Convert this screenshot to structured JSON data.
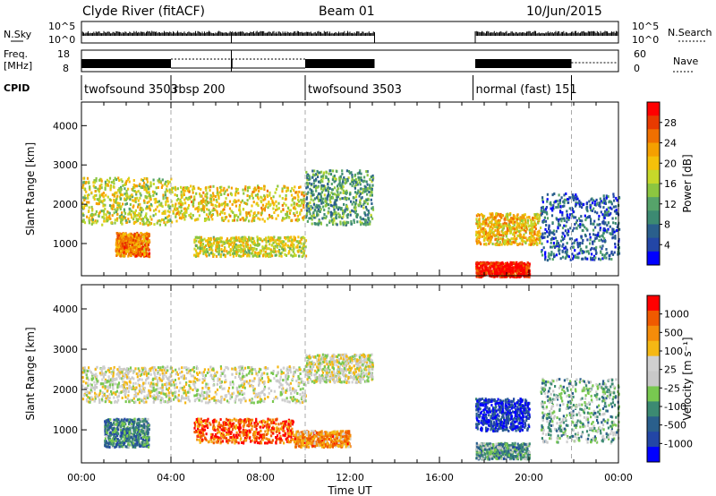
{
  "header": {
    "station": "Clyde River (fitACF)",
    "beam": "Beam 01",
    "date": "10/Jun/2015"
  },
  "top_panels": {
    "nsky_label": "N.Sky",
    "nsky_ticks": [
      "10^5",
      "10^0"
    ],
    "nsearch_label": "N.Search",
    "nsearch_ticks": [
      "10^5",
      "10^0"
    ],
    "freq_label_1": "Freq.",
    "freq_label_2": "[MHz]",
    "freq_ticks": [
      "18",
      "8"
    ],
    "nave_label": "Nave",
    "nave_ticks": [
      "60",
      "0"
    ],
    "cpid_label": "CPID",
    "cpid_segments": [
      {
        "label": "twofsound 3503",
        "start": 0.0,
        "end": 4.0
      },
      {
        "label": "rbsp 200",
        "start": 4.0,
        "end": 10.0
      },
      {
        "label": "twofsound 3503",
        "start": 10.0,
        "end": 17.5
      },
      {
        "label": "normal (fast) 151",
        "start": 17.5,
        "end": 24.0
      }
    ],
    "data_gap": [
      13.1,
      17.6
    ]
  },
  "chart_data": [
    {
      "type": "heatmap",
      "name": "power",
      "ylabel": "Slant Range [km]",
      "yticks": [
        "1000",
        "2000",
        "3000",
        "4000"
      ],
      "ylim": [
        180,
        4600
      ],
      "xlim": [
        0,
        24
      ],
      "colorbar_label": "Power [dB]",
      "colorbar_ticks": [
        "4",
        "8",
        "12",
        "16",
        "20",
        "24",
        "28"
      ],
      "colorscale": [
        "#0000ff",
        "#2346a6",
        "#2a5f8c",
        "#3c8a72",
        "#56a36a",
        "#8cc640",
        "#c6d82a",
        "#f5c10a",
        "#f5a000",
        "#f07000",
        "#e83a00",
        "#ff0000"
      ],
      "regions": [
        {
          "t": [
            0.0,
            4.0
          ],
          "r": [
            1500,
            2700
          ],
          "level": 0.55
        },
        {
          "t": [
            1.5,
            3.0
          ],
          "r": [
            700,
            1300
          ],
          "level": 0.75
        },
        {
          "t": [
            4.0,
            10.0
          ],
          "r": [
            1600,
            2500
          ],
          "level": 0.6
        },
        {
          "t": [
            5.0,
            10.0
          ],
          "r": [
            700,
            1200
          ],
          "level": 0.55
        },
        {
          "t": [
            10.0,
            13.0
          ],
          "r": [
            1500,
            2900
          ],
          "level": 0.35
        },
        {
          "t": [
            17.6,
            20.5
          ],
          "r": [
            1000,
            1800
          ],
          "level": 0.65
        },
        {
          "t": [
            17.6,
            20.0
          ],
          "r": [
            180,
            550
          ],
          "level": 0.95
        },
        {
          "t": [
            20.5,
            24.0
          ],
          "r": [
            600,
            2300
          ],
          "level": 0.2
        }
      ]
    },
    {
      "type": "heatmap",
      "name": "velocity",
      "ylabel": "Slant Range [km]",
      "yticks": [
        "1000",
        "2000",
        "3000",
        "4000"
      ],
      "ylim": [
        180,
        4600
      ],
      "xlim": [
        0,
        24
      ],
      "xticks": [
        "00:00",
        "04:00",
        "08:00",
        "12:00",
        "16:00",
        "20:00",
        "00:00"
      ],
      "xlabel": "Time UT",
      "colorbar_label": "Velocity [m s⁻¹]",
      "colorbar_ticks": [
        "1000",
        "500",
        "100",
        "25",
        "-25",
        "-100",
        "-500",
        "-1000"
      ],
      "colorscale": [
        "#ff0000",
        "#f05a00",
        "#f58c0a",
        "#f5b814",
        "#d0d0d0",
        "#c8c8c8",
        "#78c850",
        "#3c8a72",
        "#2a5f8c",
        "#2346a6",
        "#0000ff"
      ],
      "regions": [
        {
          "t": [
            0.0,
            4.0
          ],
          "r": [
            1700,
            2600
          ],
          "level": 0.45
        },
        {
          "t": [
            1.0,
            3.0
          ],
          "r": [
            600,
            1300
          ],
          "level": 0.7
        },
        {
          "t": [
            4.0,
            10.0
          ],
          "r": [
            1700,
            2600
          ],
          "level": 0.45
        },
        {
          "t": [
            5.0,
            9.5
          ],
          "r": [
            700,
            1300
          ],
          "level": 0.15
        },
        {
          "t": [
            9.5,
            12.0
          ],
          "r": [
            600,
            1000
          ],
          "level": 0.25
        },
        {
          "t": [
            10.0,
            13.0
          ],
          "r": [
            2200,
            2900
          ],
          "level": 0.45
        },
        {
          "t": [
            17.6,
            20.0
          ],
          "r": [
            1000,
            1800
          ],
          "level": 0.9
        },
        {
          "t": [
            17.6,
            20.0
          ],
          "r": [
            300,
            700
          ],
          "level": 0.65
        },
        {
          "t": [
            20.5,
            24.0
          ],
          "r": [
            700,
            2300
          ],
          "level": 0.6
        }
      ]
    }
  ]
}
